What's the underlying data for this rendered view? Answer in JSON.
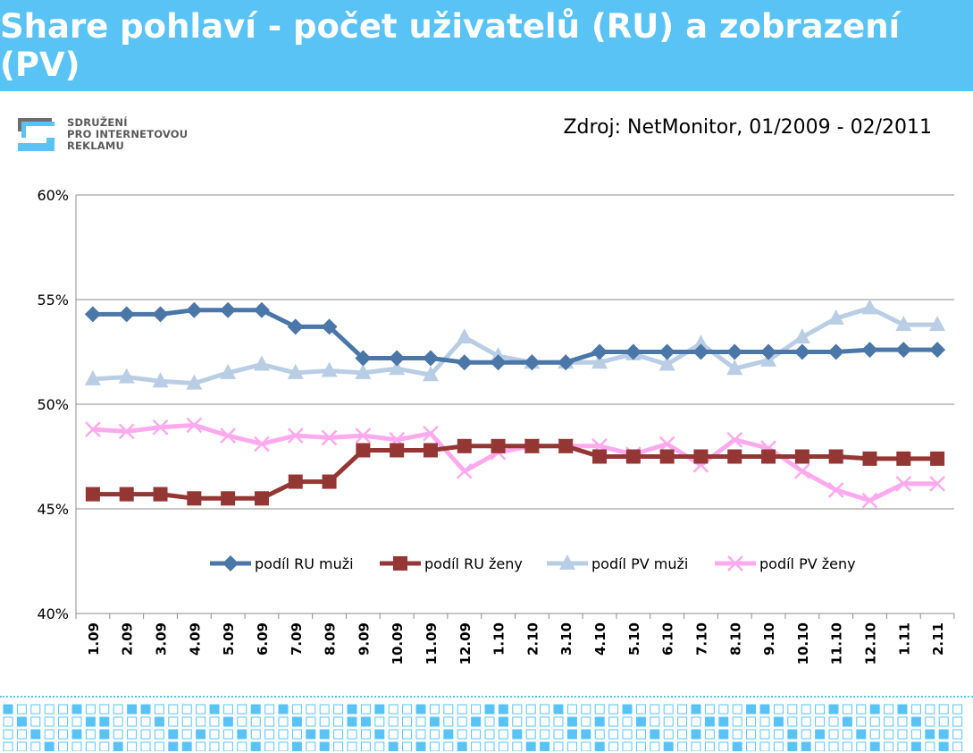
{
  "title": "Share pohlaví - počet uživatelů (RU) a zobrazení (PV)",
  "logo": {
    "lines": [
      "SDRUŽENÍ",
      "PRO INTERNETOVOU",
      "REKLAMU"
    ]
  },
  "source": "Zdroj: NetMonitor, 01/2009 - 02/2011",
  "chart_data": {
    "type": "line",
    "categories": [
      "1.09",
      "2.09",
      "3.09",
      "4.09",
      "5.09",
      "6.09",
      "7.09",
      "8.09",
      "9.09",
      "10.09",
      "11.09",
      "12.09",
      "1.10",
      "2.10",
      "3.10",
      "4.10",
      "5.10",
      "6.10",
      "7.10",
      "8.10",
      "9.10",
      "10.10",
      "11.10",
      "12.10",
      "1.11",
      "2.11"
    ],
    "ylim": [
      0.4,
      0.6
    ],
    "yticks": [
      0.4,
      0.45,
      0.5,
      0.55,
      0.6
    ],
    "ytick_labels": [
      "40%",
      "45%",
      "50%",
      "55%",
      "60%"
    ],
    "grid": true,
    "legend_position": "inside-bottom",
    "series": [
      {
        "name": "podíl RU  muži",
        "color": "#4a76a8",
        "marker": "diamond",
        "values": [
          0.543,
          0.543,
          0.543,
          0.545,
          0.545,
          0.545,
          0.537,
          0.537,
          0.522,
          0.522,
          0.522,
          0.52,
          0.52,
          0.52,
          0.52,
          0.525,
          0.525,
          0.525,
          0.525,
          0.525,
          0.525,
          0.525,
          0.525,
          0.526,
          0.526,
          0.526
        ]
      },
      {
        "name": "podíl RU  ženy",
        "color": "#943634",
        "marker": "square",
        "values": [
          0.457,
          0.457,
          0.457,
          0.455,
          0.455,
          0.455,
          0.463,
          0.463,
          0.478,
          0.478,
          0.478,
          0.48,
          0.48,
          0.48,
          0.48,
          0.475,
          0.475,
          0.475,
          0.475,
          0.475,
          0.475,
          0.475,
          0.475,
          0.474,
          0.474,
          0.474
        ]
      },
      {
        "name": "podíl PV muži",
        "color": "#b9cde5",
        "marker": "triangle",
        "values": [
          0.512,
          0.513,
          0.511,
          0.51,
          0.515,
          0.519,
          0.515,
          0.516,
          0.515,
          0.517,
          0.514,
          0.532,
          0.523,
          0.52,
          0.52,
          0.52,
          0.524,
          0.519,
          0.529,
          0.517,
          0.521,
          0.532,
          0.541,
          0.546,
          0.538,
          0.538
        ]
      },
      {
        "name": "podíl PV ženy",
        "color": "#ffaaee",
        "marker": "cross",
        "values": [
          0.488,
          0.487,
          0.489,
          0.49,
          0.485,
          0.481,
          0.485,
          0.484,
          0.485,
          0.483,
          0.486,
          0.468,
          0.477,
          0.48,
          0.48,
          0.48,
          0.476,
          0.481,
          0.471,
          0.483,
          0.479,
          0.468,
          0.459,
          0.454,
          0.462,
          0.462
        ]
      }
    ]
  }
}
